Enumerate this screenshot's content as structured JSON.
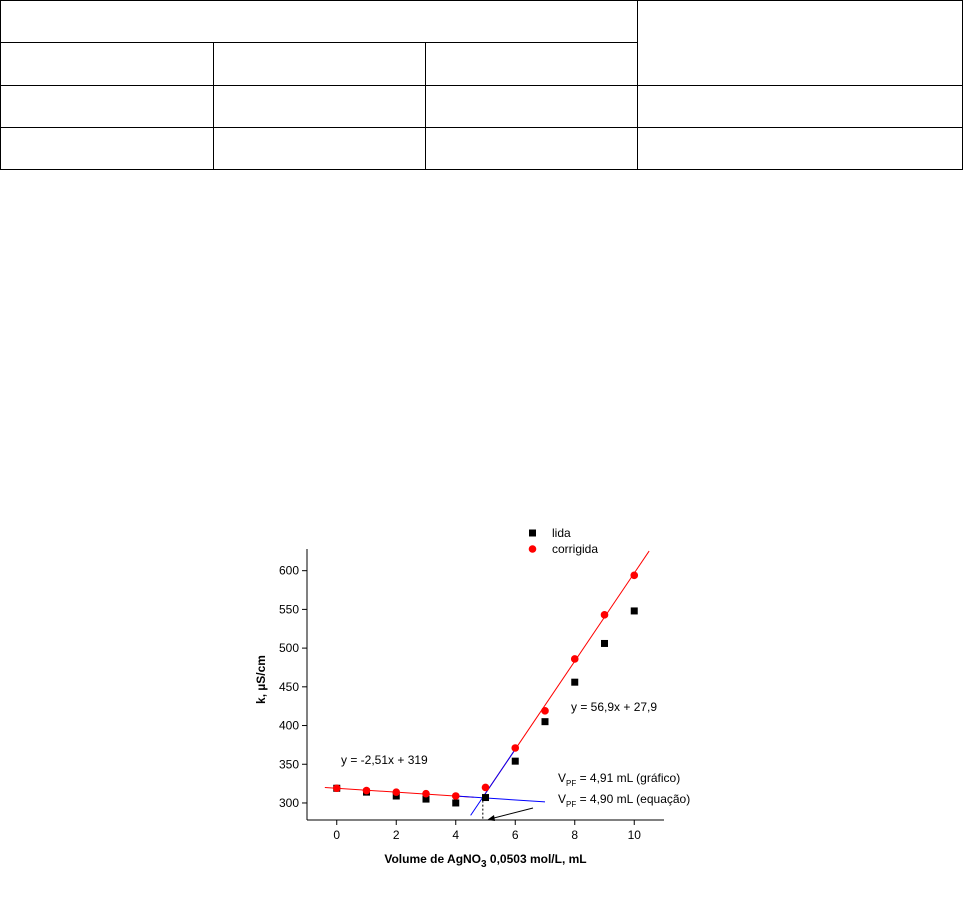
{
  "chart_data": {
    "type": "scatter",
    "x": [
      0,
      1,
      2,
      3,
      4,
      5,
      6,
      7,
      8,
      9,
      10
    ],
    "series": [
      {
        "name": "lida",
        "color": "#000000",
        "marker": "square",
        "values": [
          319,
          314,
          309,
          305,
          300,
          307,
          354,
          405,
          456,
          506,
          548
        ]
      },
      {
        "name": "corrigida",
        "color": "#ff0000",
        "marker": "circle",
        "values": [
          319,
          316,
          314,
          312,
          309,
          320,
          371,
          419,
          486,
          543,
          594
        ]
      }
    ],
    "fits": [
      {
        "label": "y = -2,51x + 319",
        "slope": -2.51,
        "intercept": 319
      },
      {
        "label": "y = 56,9x + 27,9",
        "slope": 56.9,
        "intercept": 27.9
      }
    ],
    "annotations": [
      {
        "main": "V",
        "sub": "PF",
        "text": " = 4,91 mL (gráfico)",
        "value": 4.91
      },
      {
        "main": "V",
        "sub": "PF",
        "text": " = 4,90 mL (equação)",
        "value": 4.9
      }
    ],
    "y_label": "k, µS/cm",
    "x_label": {
      "main": "Volume de AgNO",
      "sub": "3",
      "rest": " 0,0503 mol/L, mL"
    },
    "xlim": [
      -1,
      11
    ],
    "xticks": [
      0,
      2,
      4,
      6,
      8,
      10
    ],
    "ylim": [
      278,
      628
    ],
    "yticks": [
      300,
      350,
      400,
      450,
      500,
      550,
      600
    ],
    "grid": false,
    "legend": "top"
  }
}
